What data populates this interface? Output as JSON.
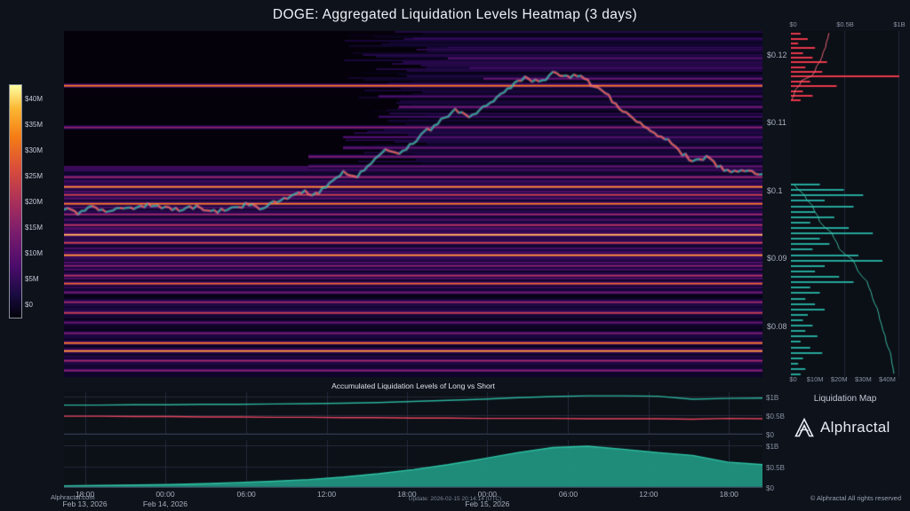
{
  "title": "DOGE: Aggregated Liquidation Levels Heatmap (3 days)",
  "branding": {
    "logo_text": "Alphractal",
    "watermark": "Alphractal.com",
    "update_text": "Update: 2026-02-15 20:14:14 (UTC)",
    "copyright": "© Alphractal All rights reserved"
  },
  "chart_data": [
    {
      "id": "liquidation-heatmap",
      "type": "heatmap",
      "title": "DOGE: Aggregated Liquidation Levels Heatmap (3 days)",
      "price_range": [
        0.0725,
        0.1235
      ],
      "y_ticks": [
        [
          0.12,
          "$0.12"
        ],
        [
          0.11,
          "$0.11"
        ],
        [
          0.1,
          "$0.1"
        ],
        [
          0.09,
          "$0.09"
        ],
        [
          0.08,
          "$0.08"
        ]
      ],
      "x_ticks": [
        [
          0.03,
          "18:00"
        ],
        [
          0.145,
          "00:00"
        ],
        [
          0.261,
          "06:00"
        ],
        [
          0.376,
          "12:00"
        ],
        [
          0.491,
          "18:00"
        ],
        [
          0.606,
          "00:00"
        ],
        [
          0.722,
          "06:00"
        ],
        [
          0.837,
          "12:00"
        ],
        [
          0.952,
          "18:00"
        ]
      ],
      "date_ticks": [
        [
          0.03,
          "Feb 13, 2026"
        ],
        [
          0.145,
          "Feb 14, 2026"
        ],
        [
          0.606,
          "Feb 15, 2026"
        ]
      ],
      "colorbar": {
        "ticks": [
          "$40M",
          "$35M",
          "$30M",
          "$25M",
          "$20M",
          "$15M",
          "$10M",
          "$5M",
          "$0"
        ]
      },
      "price_line": {
        "up_color": "#26a69a",
        "down_color": "#ef5350",
        "points": [
          [
            0.0,
            0.0972
          ],
          [
            0.02,
            0.0968
          ],
          [
            0.04,
            0.0974
          ],
          [
            0.06,
            0.0969
          ],
          [
            0.08,
            0.0976
          ],
          [
            0.1,
            0.0972
          ],
          [
            0.12,
            0.0979
          ],
          [
            0.14,
            0.0975
          ],
          [
            0.16,
            0.0971
          ],
          [
            0.18,
            0.0977
          ],
          [
            0.2,
            0.0973
          ],
          [
            0.22,
            0.0969
          ],
          [
            0.24,
            0.0975
          ],
          [
            0.26,
            0.0979
          ],
          [
            0.28,
            0.0974
          ],
          [
            0.3,
            0.0981
          ],
          [
            0.32,
            0.0988
          ],
          [
            0.34,
            0.0999
          ],
          [
            0.36,
            0.0994
          ],
          [
            0.38,
            0.1009
          ],
          [
            0.4,
            0.1028
          ],
          [
            0.42,
            0.1022
          ],
          [
            0.44,
            0.1043
          ],
          [
            0.46,
            0.1058
          ],
          [
            0.48,
            0.1052
          ],
          [
            0.5,
            0.1072
          ],
          [
            0.52,
            0.1088
          ],
          [
            0.54,
            0.1103
          ],
          [
            0.56,
            0.1118
          ],
          [
            0.58,
            0.1106
          ],
          [
            0.6,
            0.1124
          ],
          [
            0.62,
            0.1138
          ],
          [
            0.64,
            0.1152
          ],
          [
            0.66,
            0.1168
          ],
          [
            0.68,
            0.1158
          ],
          [
            0.7,
            0.1174
          ],
          [
            0.72,
            0.1166
          ],
          [
            0.74,
            0.1171
          ],
          [
            0.76,
            0.1152
          ],
          [
            0.78,
            0.1138
          ],
          [
            0.8,
            0.1118
          ],
          [
            0.82,
            0.1102
          ],
          [
            0.84,
            0.1088
          ],
          [
            0.86,
            0.1078
          ],
          [
            0.88,
            0.1058
          ],
          [
            0.9,
            0.1044
          ],
          [
            0.92,
            0.1049
          ],
          [
            0.94,
            0.1034
          ],
          [
            0.96,
            0.1027
          ],
          [
            0.98,
            0.1031
          ],
          [
            1.0,
            0.1024
          ]
        ]
      },
      "liquidation_bands": [
        [
          0.1225,
          0.3,
          0.5
        ],
        [
          0.1212,
          0.25,
          0.55
        ],
        [
          0.1196,
          0.4,
          0.55
        ],
        [
          0.1181,
          0.35,
          0.58
        ],
        [
          0.1166,
          0.45,
          0.6
        ],
        [
          0.1155,
          0.85,
          0.0
        ],
        [
          0.114,
          0.38,
          0.45
        ],
        [
          0.1124,
          0.5,
          0.48
        ],
        [
          0.111,
          0.33,
          0.45
        ],
        [
          0.1094,
          0.55,
          0.0
        ],
        [
          0.108,
          0.4,
          0.4
        ],
        [
          0.1064,
          0.45,
          0.4
        ],
        [
          0.105,
          0.52,
          0.35
        ],
        [
          0.1036,
          0.45,
          0.35
        ],
        [
          0.102,
          0.6,
          0.0
        ],
        [
          0.1006,
          0.88,
          0.0
        ],
        [
          0.0994,
          0.7,
          0.0
        ],
        [
          0.0981,
          0.85,
          0.0
        ],
        [
          0.0966,
          0.6,
          0.0
        ],
        [
          0.095,
          0.66,
          0.0
        ],
        [
          0.0936,
          0.95,
          0.0
        ],
        [
          0.0924,
          0.72,
          0.0
        ],
        [
          0.0906,
          0.9,
          0.0
        ],
        [
          0.089,
          0.55,
          0.0
        ],
        [
          0.0876,
          0.65,
          0.0
        ],
        [
          0.0864,
          0.8,
          0.0
        ],
        [
          0.085,
          0.5,
          0.0
        ],
        [
          0.0836,
          0.6,
          0.0
        ],
        [
          0.082,
          0.7,
          0.0
        ],
        [
          0.0806,
          0.45,
          0.0
        ],
        [
          0.079,
          0.52,
          0.0
        ],
        [
          0.0776,
          0.85,
          0.0
        ],
        [
          0.0764,
          0.9,
          0.0
        ],
        [
          0.075,
          0.6,
          0.0
        ],
        [
          0.0736,
          0.55,
          0.0
        ]
      ]
    },
    {
      "id": "liquidation-map",
      "type": "bar",
      "orientation": "horizontal",
      "title": "Liquidation Map",
      "top_axis": {
        "max": 1,
        "ticks": [
          [
            "$0",
            0
          ],
          [
            "$0.5B",
            0.5
          ],
          [
            "$1B",
            1
          ]
        ]
      },
      "bottom_axis": {
        "max": 45,
        "ticks": [
          [
            "$0",
            0
          ],
          [
            "$10M",
            10
          ],
          [
            "$20M",
            20
          ],
          [
            "$30M",
            30
          ],
          [
            "$40M",
            40
          ]
        ]
      },
      "shorts": {
        "color": "#e8374a",
        "cum_color": "#ff6b7a",
        "cum_scale": 0.35,
        "price_start": 0.1232,
        "price_step": -0.0007,
        "values": [
          4,
          7,
          3,
          10,
          5,
          9,
          15,
          6,
          13,
          45,
          8,
          19,
          5,
          9,
          4
        ]
      },
      "longs": {
        "color": "#26a69a",
        "cum_color": "#3ec9ac",
        "cum_scale": 0.95,
        "price_start": 0.101,
        "price_step": -0.0008,
        "values": [
          12,
          22,
          30,
          14,
          26,
          10,
          18,
          8,
          24,
          34,
          12,
          16,
          9,
          28,
          38,
          14,
          10,
          20,
          26,
          8,
          12,
          6,
          10,
          14,
          7,
          5,
          9,
          6,
          11,
          4,
          8,
          13,
          5,
          3,
          6,
          4
        ]
      }
    },
    {
      "id": "accumulated-long-short",
      "type": "line",
      "title": "Accumulated Liquidation Levels of Long vs Short",
      "ymax": 1.15,
      "y_ticks": [
        [
          "$1B",
          1
        ],
        [
          "$0.5B",
          0.5
        ],
        [
          "$0",
          0
        ]
      ],
      "series": [
        {
          "name": "Long",
          "color": "#2bb39c",
          "area": false,
          "values": [
            0.8,
            0.8,
            0.81,
            0.81,
            0.82,
            0.82,
            0.83,
            0.84,
            0.85,
            0.87,
            0.9,
            0.93,
            0.96,
            1.0,
            1.03,
            1.05,
            1.05,
            1.04,
            0.96,
            0.98,
            0.99
          ]
        },
        {
          "name": "Short",
          "color": "#e5445f",
          "area": false,
          "values": [
            0.5,
            0.5,
            0.49,
            0.49,
            0.48,
            0.48,
            0.47,
            0.47,
            0.46,
            0.46,
            0.45,
            0.45,
            0.44,
            0.44,
            0.44,
            0.43,
            0.43,
            0.43,
            0.42,
            0.44,
            0.43
          ]
        }
      ]
    },
    {
      "id": "cumulative-longs",
      "type": "area",
      "ymax": 1.15,
      "y_ticks": [
        [
          "$1B",
          1
        ],
        [
          "$0.5B",
          0.5
        ],
        [
          "$0",
          0
        ]
      ],
      "series": [
        {
          "name": "Long",
          "color": "#2ec4a5",
          "area": true,
          "fill": "#21947f",
          "fill_alpha": 0.95,
          "values": [
            0.05,
            0.06,
            0.07,
            0.08,
            0.1,
            0.13,
            0.16,
            0.2,
            0.26,
            0.34,
            0.44,
            0.56,
            0.7,
            0.85,
            0.97,
            1.0,
            0.93,
            0.85,
            0.78,
            0.62,
            0.56
          ]
        }
      ]
    }
  ]
}
